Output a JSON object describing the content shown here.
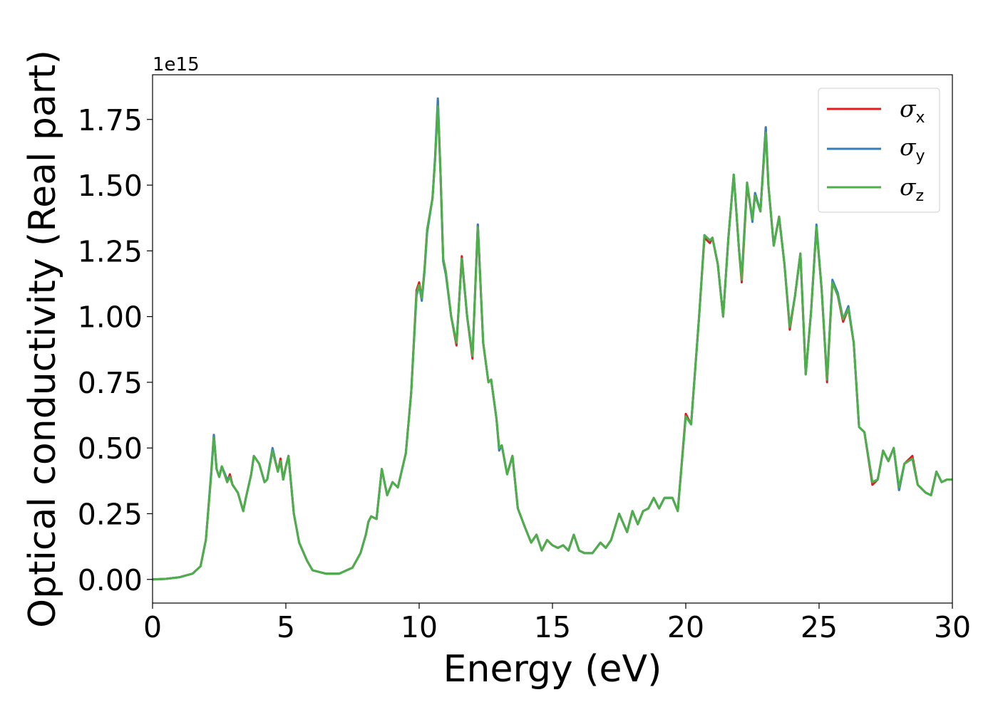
{
  "chart_data": {
    "type": "line",
    "xlabel": "Energy (eV)",
    "ylabel": "Optical conductivity (Real part)",
    "y_offset_label": "1e15",
    "xlim": [
      0,
      30
    ],
    "ylim": [
      -0.09,
      1.92
    ],
    "x_ticks": [
      0,
      5,
      10,
      15,
      20,
      25,
      30
    ],
    "x_tick_labels": [
      "0",
      "5",
      "10",
      "15",
      "20",
      "25",
      "30"
    ],
    "y_ticks": [
      0,
      0.25,
      0.5,
      0.75,
      1.0,
      1.25,
      1.5,
      1.75
    ],
    "y_tick_labels": [
      "0.00",
      "0.25",
      "0.50",
      "0.75",
      "1.00",
      "1.25",
      "1.50",
      "1.75"
    ],
    "grid": false,
    "legend_position": "top-right",
    "x": [
      0,
      0.5,
      1,
      1.5,
      1.8,
      2,
      2.2,
      2.3,
      2.4,
      2.5,
      2.6,
      2.8,
      2.9,
      3,
      3.2,
      3.4,
      3.5,
      3.7,
      3.8,
      4,
      4.2,
      4.3,
      4.5,
      4.7,
      4.8,
      4.9,
      5,
      5.1,
      5.3,
      5.5,
      5.8,
      6,
      6.5,
      7,
      7.5,
      7.8,
      8,
      8.1,
      8.2,
      8.4,
      8.6,
      8.8,
      9,
      9.2,
      9.5,
      9.7,
      9.9,
      10,
      10.1,
      10.2,
      10.3,
      10.5,
      10.6,
      10.7,
      10.8,
      10.9,
      11,
      11.2,
      11.4,
      11.6,
      11.8,
      12,
      12.2,
      12.4,
      12.6,
      12.7,
      12.9,
      13,
      13.1,
      13.3,
      13.5,
      13.7,
      14,
      14.2,
      14.4,
      14.6,
      14.8,
      15,
      15.2,
      15.4,
      15.6,
      15.8,
      16,
      16.2,
      16.5,
      16.8,
      17,
      17.2,
      17.5,
      17.8,
      18,
      18.2,
      18.4,
      18.6,
      18.8,
      19,
      19.2,
      19.5,
      19.7,
      20,
      20.2,
      20.5,
      20.7,
      20.9,
      21,
      21.2,
      21.4,
      21.6,
      21.8,
      22,
      22.1,
      22.3,
      22.5,
      22.6,
      22.8,
      23,
      23.1,
      23.3,
      23.5,
      23.7,
      23.9,
      24.1,
      24.3,
      24.5,
      24.7,
      24.9,
      25.1,
      25.3,
      25.5,
      25.7,
      25.9,
      26.1,
      26.3,
      26.5,
      26.7,
      27,
      27.2,
      27.4,
      27.6,
      27.8,
      28,
      28.2,
      28.5,
      28.7,
      29,
      29.2,
      29.4,
      29.6,
      29.8,
      30
    ],
    "series": [
      {
        "name": "σx",
        "color": "#e41a1c",
        "values": [
          0,
          0.002,
          0.008,
          0.022,
          0.05,
          0.15,
          0.4,
          0.55,
          0.42,
          0.39,
          0.43,
          0.37,
          0.4,
          0.36,
          0.33,
          0.26,
          0.31,
          0.4,
          0.47,
          0.44,
          0.37,
          0.38,
          0.49,
          0.41,
          0.46,
          0.38,
          0.43,
          0.47,
          0.25,
          0.14,
          0.07,
          0.035,
          0.022,
          0.022,
          0.045,
          0.1,
          0.17,
          0.22,
          0.24,
          0.23,
          0.42,
          0.32,
          0.37,
          0.35,
          0.48,
          0.71,
          1.1,
          1.13,
          1.07,
          1.18,
          1.33,
          1.45,
          1.6,
          1.82,
          1.55,
          1.22,
          1.17,
          1.0,
          0.89,
          1.23,
          1.0,
          0.84,
          1.35,
          0.9,
          0.75,
          0.76,
          0.61,
          0.5,
          0.51,
          0.4,
          0.47,
          0.27,
          0.19,
          0.14,
          0.17,
          0.11,
          0.15,
          0.13,
          0.12,
          0.13,
          0.11,
          0.17,
          0.11,
          0.1,
          0.1,
          0.14,
          0.12,
          0.15,
          0.25,
          0.18,
          0.26,
          0.21,
          0.26,
          0.27,
          0.31,
          0.27,
          0.31,
          0.31,
          0.26,
          0.63,
          0.59,
          1.0,
          1.3,
          1.28,
          1.3,
          1.2,
          1.0,
          1.3,
          1.54,
          1.25,
          1.13,
          1.5,
          1.37,
          1.47,
          1.4,
          1.72,
          1.5,
          1.27,
          1.38,
          1.2,
          0.95,
          1.08,
          1.24,
          0.78,
          1.02,
          1.34,
          1.1,
          0.75,
          1.13,
          1.08,
          0.98,
          1.03,
          0.9,
          0.58,
          0.56,
          0.36,
          0.38,
          0.49,
          0.45,
          0.5,
          0.34,
          0.44,
          0.47,
          0.36,
          0.33,
          0.32,
          0.41,
          0.37,
          0.38,
          0.38
        ]
      },
      {
        "name": "σy",
        "color": "#377eb8",
        "values": [
          0,
          0.002,
          0.008,
          0.022,
          0.05,
          0.15,
          0.41,
          0.55,
          0.42,
          0.39,
          0.43,
          0.38,
          0.39,
          0.36,
          0.33,
          0.26,
          0.31,
          0.4,
          0.47,
          0.44,
          0.37,
          0.38,
          0.5,
          0.41,
          0.45,
          0.38,
          0.43,
          0.47,
          0.25,
          0.14,
          0.07,
          0.035,
          0.022,
          0.022,
          0.045,
          0.1,
          0.17,
          0.22,
          0.24,
          0.23,
          0.42,
          0.32,
          0.37,
          0.35,
          0.48,
          0.71,
          1.08,
          1.12,
          1.06,
          1.17,
          1.32,
          1.45,
          1.61,
          1.83,
          1.55,
          1.21,
          1.16,
          1.0,
          0.9,
          1.22,
          1.0,
          0.85,
          1.35,
          0.9,
          0.75,
          0.76,
          0.61,
          0.49,
          0.51,
          0.4,
          0.47,
          0.27,
          0.19,
          0.14,
          0.17,
          0.11,
          0.15,
          0.13,
          0.12,
          0.13,
          0.11,
          0.17,
          0.11,
          0.1,
          0.1,
          0.14,
          0.12,
          0.15,
          0.25,
          0.18,
          0.26,
          0.21,
          0.26,
          0.27,
          0.31,
          0.27,
          0.31,
          0.31,
          0.26,
          0.62,
          0.59,
          1.0,
          1.31,
          1.29,
          1.3,
          1.2,
          1.0,
          1.3,
          1.54,
          1.25,
          1.15,
          1.51,
          1.36,
          1.47,
          1.4,
          1.72,
          1.5,
          1.27,
          1.38,
          1.2,
          0.96,
          1.08,
          1.24,
          0.78,
          1.02,
          1.35,
          1.1,
          0.76,
          1.14,
          1.09,
          0.99,
          1.04,
          0.9,
          0.58,
          0.56,
          0.37,
          0.38,
          0.49,
          0.45,
          0.5,
          0.34,
          0.44,
          0.46,
          0.36,
          0.33,
          0.32,
          0.41,
          0.37,
          0.38,
          0.38
        ]
      },
      {
        "name": "σz",
        "color": "#4daf4a",
        "values": [
          0,
          0.002,
          0.008,
          0.022,
          0.05,
          0.15,
          0.4,
          0.54,
          0.42,
          0.39,
          0.43,
          0.37,
          0.39,
          0.36,
          0.33,
          0.26,
          0.31,
          0.4,
          0.47,
          0.44,
          0.37,
          0.38,
          0.49,
          0.41,
          0.45,
          0.38,
          0.43,
          0.47,
          0.25,
          0.14,
          0.07,
          0.035,
          0.022,
          0.022,
          0.045,
          0.1,
          0.17,
          0.22,
          0.24,
          0.23,
          0.42,
          0.32,
          0.37,
          0.35,
          0.48,
          0.71,
          1.09,
          1.12,
          1.07,
          1.18,
          1.33,
          1.45,
          1.6,
          1.8,
          1.55,
          1.22,
          1.17,
          1.0,
          0.9,
          1.22,
          1.0,
          0.85,
          1.34,
          0.9,
          0.75,
          0.76,
          0.61,
          0.5,
          0.51,
          0.4,
          0.47,
          0.27,
          0.19,
          0.14,
          0.17,
          0.11,
          0.15,
          0.13,
          0.12,
          0.13,
          0.11,
          0.17,
          0.11,
          0.1,
          0.1,
          0.14,
          0.12,
          0.15,
          0.25,
          0.18,
          0.26,
          0.21,
          0.26,
          0.27,
          0.31,
          0.27,
          0.31,
          0.31,
          0.26,
          0.62,
          0.59,
          1.0,
          1.31,
          1.29,
          1.3,
          1.2,
          1.0,
          1.3,
          1.54,
          1.25,
          1.14,
          1.51,
          1.37,
          1.46,
          1.4,
          1.7,
          1.5,
          1.27,
          1.38,
          1.2,
          0.96,
          1.08,
          1.24,
          0.78,
          1.02,
          1.34,
          1.1,
          0.76,
          1.13,
          1.08,
          0.99,
          1.03,
          0.9,
          0.58,
          0.56,
          0.37,
          0.38,
          0.49,
          0.45,
          0.5,
          0.35,
          0.44,
          0.46,
          0.36,
          0.33,
          0.32,
          0.41,
          0.37,
          0.38,
          0.38
        ]
      }
    ]
  },
  "legend": {
    "items": [
      {
        "symbol": "σ",
        "sub": "x"
      },
      {
        "symbol": "σ",
        "sub": "y"
      },
      {
        "symbol": "σ",
        "sub": "z"
      }
    ]
  }
}
